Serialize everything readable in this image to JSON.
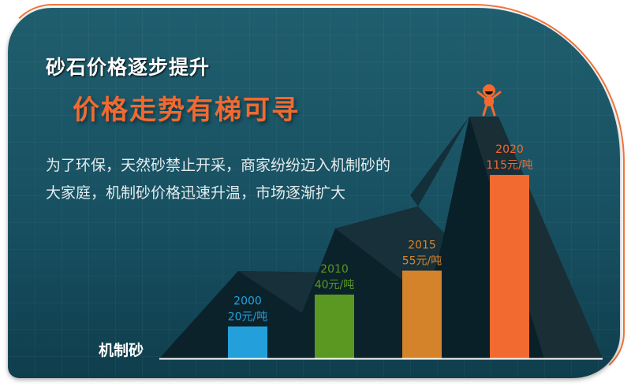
{
  "title": "砂石价格逐步提升",
  "subtitle": "价格走势有梯可寻",
  "description": "为了环保，天然砂禁止开采，商家纷纷迈入机制砂的大家庭，机制砂价格迅速升温，市场逐渐扩大",
  "chart_data": {
    "type": "bar",
    "xlabel": "机制砂",
    "unit": "元/吨",
    "categories": [
      "2000",
      "2010",
      "2015",
      "2020"
    ],
    "values": [
      20,
      40,
      55,
      115
    ],
    "value_labels": [
      "20元/吨",
      "40元/吨",
      "55元/吨",
      "115元/吨"
    ],
    "colors": [
      "#23a0dc",
      "#5a9822",
      "#d4832a",
      "#f26a30"
    ],
    "ylim": [
      0,
      115
    ],
    "grid": false,
    "legend": "none"
  },
  "colors": {
    "background": "#1a5566",
    "accent": "#f26a30",
    "mountain": "#0b2630"
  },
  "decoration_icon": "person-cheering-on-peak-icon"
}
